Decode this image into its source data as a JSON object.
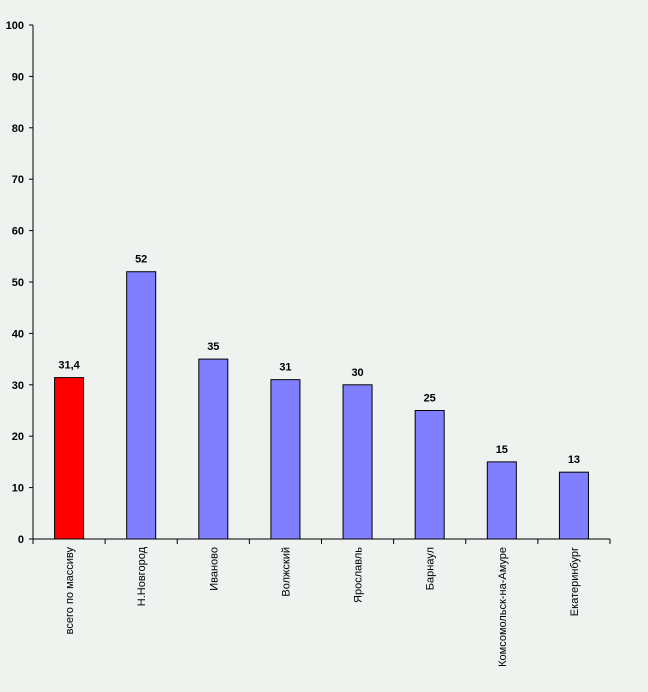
{
  "chart_data": {
    "type": "bar",
    "title": "",
    "xlabel": "",
    "ylabel": "",
    "ylim": [
      0,
      100
    ],
    "yticks": [
      0,
      10,
      20,
      30,
      40,
      50,
      60,
      70,
      80,
      90,
      100
    ],
    "grid": false,
    "categories": [
      "всего по массиву",
      "Н.Новгород",
      "Иваново",
      "Волжский",
      "Ярославль",
      "Барнаул",
      "Комсомольск-на-Амуре",
      "Екатеринбург"
    ],
    "values": [
      31.4,
      52,
      35,
      31,
      30,
      25,
      15,
      13
    ],
    "value_labels": [
      "31,4",
      "52",
      "35",
      "31",
      "30",
      "25",
      "15",
      "13"
    ],
    "colors": [
      "#ff0000",
      "#8080ff",
      "#8080ff",
      "#8080ff",
      "#8080ff",
      "#8080ff",
      "#8080ff",
      "#8080ff"
    ]
  }
}
